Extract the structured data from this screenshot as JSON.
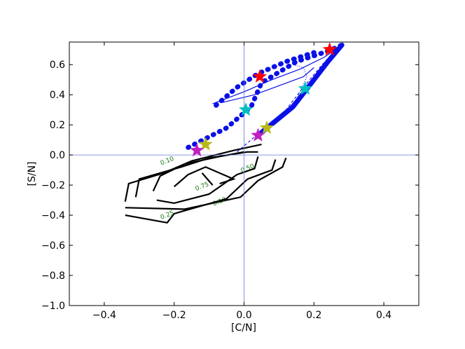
{
  "chart_data": {
    "type": "line",
    "xlabel": "[C/N]",
    "ylabel": "[S/N]",
    "xlim": [
      -0.5,
      0.5
    ],
    "ylim": [
      -1.0,
      0.75
    ],
    "xticks": [
      -0.4,
      -0.2,
      0.0,
      0.2,
      0.4
    ],
    "xtick_labels": [
      "−0.4",
      "−0.2",
      "0.0",
      "0.2",
      "0.4"
    ],
    "yticks": [
      -1.0,
      -0.8,
      -0.6,
      -0.4,
      -0.2,
      0.0,
      0.2,
      0.4,
      0.6
    ],
    "ytick_labels": [
      "−1.0",
      "−0.8",
      "−0.6",
      "−0.4",
      "−0.2",
      "0.0",
      "0.2",
      "0.4",
      "0.6"
    ],
    "reference_lines": {
      "x": 0.0,
      "y": 0.0,
      "color": "#6677dd"
    },
    "grid": false,
    "legend": "none",
    "contours": [
      {
        "level_label": "0.10",
        "color": "#000000",
        "label_color": "#1a7a1a",
        "segments": [
          [
            [
              -0.34,
              -0.31
            ],
            [
              -0.33,
              -0.19
            ],
            [
              -0.23,
              -0.12
            ],
            [
              -0.15,
              -0.04
            ],
            [
              -0.03,
              0.03
            ],
            [
              0.05,
              0.07
            ]
          ],
          [
            [
              0.12,
              -0.02
            ],
            [
              0.11,
              -0.08
            ],
            [
              0.04,
              -0.17
            ],
            [
              -0.01,
              -0.28
            ],
            [
              -0.17,
              -0.36
            ],
            [
              -0.34,
              -0.35
            ]
          ]
        ],
        "labels": [
          {
            "text": "0.10",
            "x": -0.22,
            "y": -0.04
          },
          {
            "text": "0.10",
            "x": -0.07,
            "y": -0.31
          }
        ]
      },
      {
        "level_label": "0.25",
        "color": "#000000",
        "label_color": "#1a7a1a",
        "segments": [
          [
            [
              -0.31,
              -0.28
            ],
            [
              -0.3,
              -0.16
            ],
            [
              -0.18,
              -0.08
            ],
            [
              -0.1,
              -0.02
            ],
            [
              0.01,
              0.02
            ],
            [
              0.04,
              0.02
            ]
          ],
          [
            [
              0.09,
              -0.03
            ],
            [
              0.08,
              -0.1
            ],
            [
              0.01,
              -0.16
            ],
            [
              -0.05,
              -0.29
            ],
            [
              -0.2,
              -0.39
            ],
            [
              -0.22,
              -0.45
            ],
            [
              -0.34,
              -0.4
            ]
          ]
        ],
        "labels": [
          {
            "text": "0.25",
            "x": -0.22,
            "y": -0.4
          }
        ]
      },
      {
        "level_label": "0.50",
        "color": "#000000",
        "label_color": "#1a7a1a",
        "segments": [
          [
            [
              -0.26,
              -0.24
            ],
            [
              -0.24,
              -0.14
            ],
            [
              -0.17,
              -0.06
            ],
            [
              -0.07,
              -0.01
            ],
            [
              0.0,
              0.02
            ]
          ],
          [
            [
              0.04,
              -0.01
            ],
            [
              0.03,
              -0.09
            ],
            [
              -0.02,
              -0.13
            ],
            [
              -0.1,
              -0.26
            ],
            [
              -0.2,
              -0.32
            ],
            [
              -0.25,
              -0.3
            ]
          ]
        ],
        "labels": [
          {
            "text": "0.50",
            "x": 0.01,
            "y": -0.09
          }
        ]
      },
      {
        "level_label": "0.75",
        "color": "#000000",
        "label_color": "#1a7a1a",
        "segments": [
          [
            [
              -0.2,
              -0.21
            ],
            [
              -0.16,
              -0.13
            ],
            [
              -0.11,
              -0.08
            ],
            [
              -0.03,
              -0.16
            ],
            [
              -0.07,
              -0.19
            ]
          ],
          [
            [
              -0.12,
              -0.12
            ],
            [
              -0.09,
              -0.2
            ]
          ]
        ],
        "labels": [
          {
            "text": "0.75",
            "x": -0.12,
            "y": -0.21
          }
        ]
      }
    ],
    "tracks": [
      {
        "style": "dotted-thick",
        "color": "#0a10e8",
        "points": [
          [
            -0.16,
            0.05
          ],
          [
            -0.05,
            0.18
          ],
          [
            0.02,
            0.32
          ],
          [
            0.05,
            0.48
          ],
          [
            0.15,
            0.62
          ],
          [
            0.24,
            0.69
          ],
          [
            0.29,
            0.74
          ]
        ]
      },
      {
        "style": "dotted-thick",
        "color": "#0a10e8",
        "points": [
          [
            -0.08,
            0.33
          ],
          [
            -0.02,
            0.45
          ],
          [
            0.04,
            0.54
          ],
          [
            0.12,
            0.62
          ],
          [
            0.2,
            0.68
          ]
        ]
      },
      {
        "style": "solid-thick",
        "color": "#0a10e8",
        "points": [
          [
            0.05,
            0.15
          ],
          [
            0.14,
            0.32
          ],
          [
            0.19,
            0.47
          ],
          [
            0.24,
            0.62
          ],
          [
            0.28,
            0.73
          ]
        ]
      },
      {
        "style": "solid-thin",
        "color": "#0a10e8",
        "points": [
          [
            -0.09,
            0.34
          ],
          [
            0.0,
            0.42
          ],
          [
            0.08,
            0.5
          ],
          [
            0.16,
            0.57
          ],
          [
            0.23,
            0.65
          ],
          [
            0.28,
            0.73
          ]
        ]
      },
      {
        "style": "solid-thin",
        "color": "#0a10e8",
        "points": [
          [
            -0.06,
            0.35
          ],
          [
            0.03,
            0.4
          ],
          [
            0.1,
            0.46
          ],
          [
            0.17,
            0.52
          ],
          [
            0.2,
            0.58
          ]
        ]
      },
      {
        "style": "dashed-thin",
        "color": "#0a10e8",
        "points": [
          [
            -0.02,
            0.02
          ],
          [
            0.06,
            0.18
          ],
          [
            0.12,
            0.3
          ],
          [
            0.17,
            0.45
          ],
          [
            0.22,
            0.59
          ],
          [
            0.27,
            0.72
          ]
        ]
      },
      {
        "style": "dotted-thin",
        "color": "#0a10e8",
        "points": [
          [
            0.08,
            0.2
          ],
          [
            0.15,
            0.37
          ],
          [
            0.18,
            0.52
          ],
          [
            0.17,
            0.58
          ],
          [
            0.14,
            0.6
          ]
        ]
      }
    ],
    "markers": [
      {
        "shape": "star",
        "color": "#ff0000",
        "x": 0.045,
        "y": 0.52
      },
      {
        "shape": "star",
        "color": "#ff0000",
        "x": 0.245,
        "y": 0.7
      },
      {
        "shape": "star",
        "color": "#00c0c0",
        "x": 0.005,
        "y": 0.3
      },
      {
        "shape": "star",
        "color": "#00c0c0",
        "x": 0.175,
        "y": 0.44
      },
      {
        "shape": "star",
        "color": "#b8b81a",
        "x": -0.11,
        "y": 0.07
      },
      {
        "shape": "star",
        "color": "#b8b81a",
        "x": 0.065,
        "y": 0.18
      },
      {
        "shape": "star",
        "color": "#c020c0",
        "x": -0.135,
        "y": 0.03
      },
      {
        "shape": "star",
        "color": "#c020c0",
        "x": 0.04,
        "y": 0.13
      }
    ]
  }
}
